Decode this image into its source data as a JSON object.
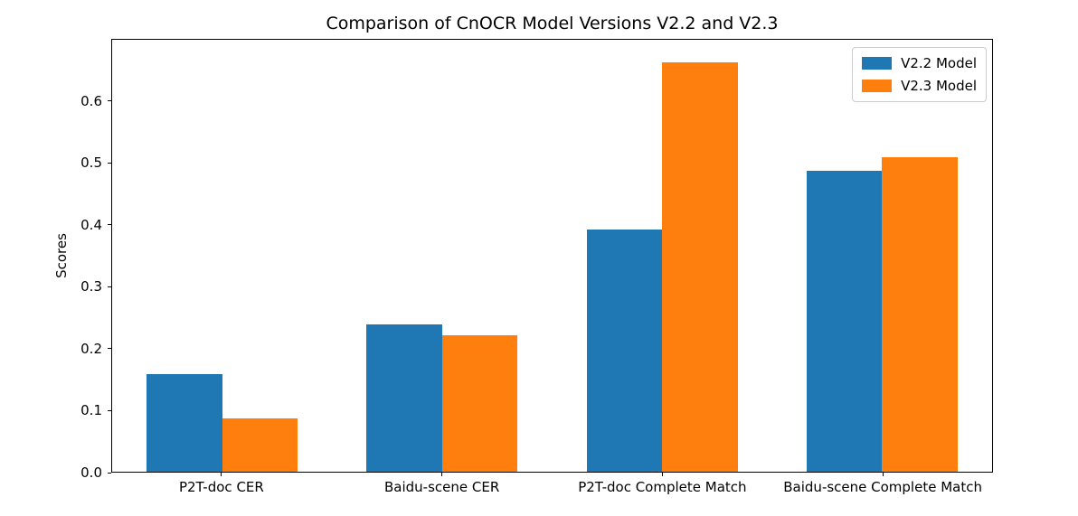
{
  "chart_data": {
    "type": "bar",
    "title": "Comparison of CnOCR Model Versions V2.2 and V2.3",
    "ylabel": "Scores",
    "categories": [
      "P2T-doc CER",
      "Baidu-scene CER",
      "P2T-doc Complete Match",
      "Baidu-scene Complete Match"
    ],
    "series": [
      {
        "name": "V2.2 Model",
        "color": "#1f77b4",
        "values": [
          0.158,
          0.238,
          0.393,
          0.487
        ]
      },
      {
        "name": "V2.3 Model",
        "color": "#ff7f0e",
        "values": [
          0.087,
          0.221,
          0.664,
          0.51
        ]
      }
    ],
    "ylim": [
      0,
      0.7
    ],
    "yticks": [
      0.0,
      0.1,
      0.2,
      0.3,
      0.4,
      0.5,
      0.6
    ],
    "ytick_decimals": 1,
    "grid": false,
    "legend_position": "upper right",
    "axis_color": "#000000",
    "legend_border_color": "#cccccc",
    "background_color": "#ffffff"
  }
}
